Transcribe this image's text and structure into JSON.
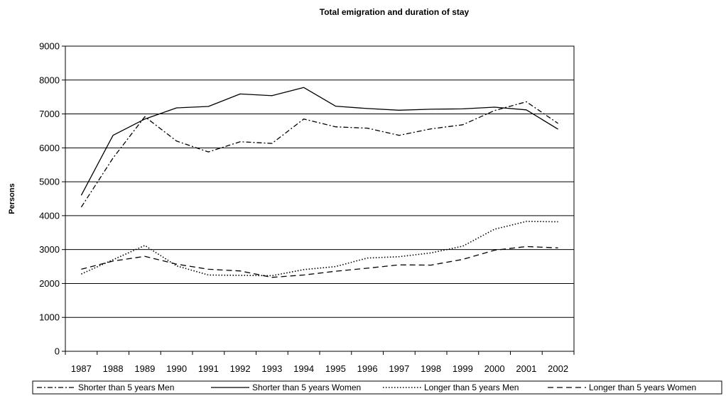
{
  "chart_data": {
    "type": "line",
    "title": "Total emigration and duration of stay",
    "xlabel": "",
    "ylabel": "Persons",
    "ylim": [
      0,
      9000
    ],
    "yticks": [
      0,
      1000,
      2000,
      3000,
      4000,
      5000,
      6000,
      7000,
      8000,
      9000
    ],
    "grid": "horizontal",
    "legend_position": "bottom",
    "categories": [
      "1987",
      "1988",
      "1989",
      "1990",
      "1991",
      "1992",
      "1993",
      "1994",
      "1995",
      "1996",
      "1997",
      "1998",
      "1999",
      "2000",
      "2001",
      "2002"
    ],
    "series": [
      {
        "name": "Shorter than 5 years Men",
        "dash": "dashdot",
        "color": "#000000",
        "values": [
          4250,
          5700,
          6920,
          6200,
          5880,
          6180,
          6130,
          6850,
          6620,
          6580,
          6370,
          6560,
          6680,
          7100,
          7360,
          6720
        ]
      },
      {
        "name": "Shorter than 5 years Women",
        "dash": "solid",
        "color": "#000000",
        "values": [
          4600,
          6370,
          6850,
          7180,
          7220,
          7590,
          7540,
          7780,
          7230,
          7160,
          7110,
          7140,
          7150,
          7200,
          7120,
          6550
        ]
      },
      {
        "name": "Longer than 5 years Men",
        "dash": "dotted",
        "color": "#000000",
        "values": [
          2280,
          2700,
          3120,
          2520,
          2250,
          2240,
          2230,
          2410,
          2500,
          2750,
          2790,
          2900,
          3100,
          3600,
          3830,
          3820
        ]
      },
      {
        "name": "Longer than 5 years Women",
        "dash": "dashed",
        "color": "#000000",
        "values": [
          2420,
          2660,
          2800,
          2570,
          2420,
          2370,
          2180,
          2250,
          2360,
          2450,
          2550,
          2540,
          2710,
          2980,
          3090,
          3050
        ]
      }
    ]
  }
}
